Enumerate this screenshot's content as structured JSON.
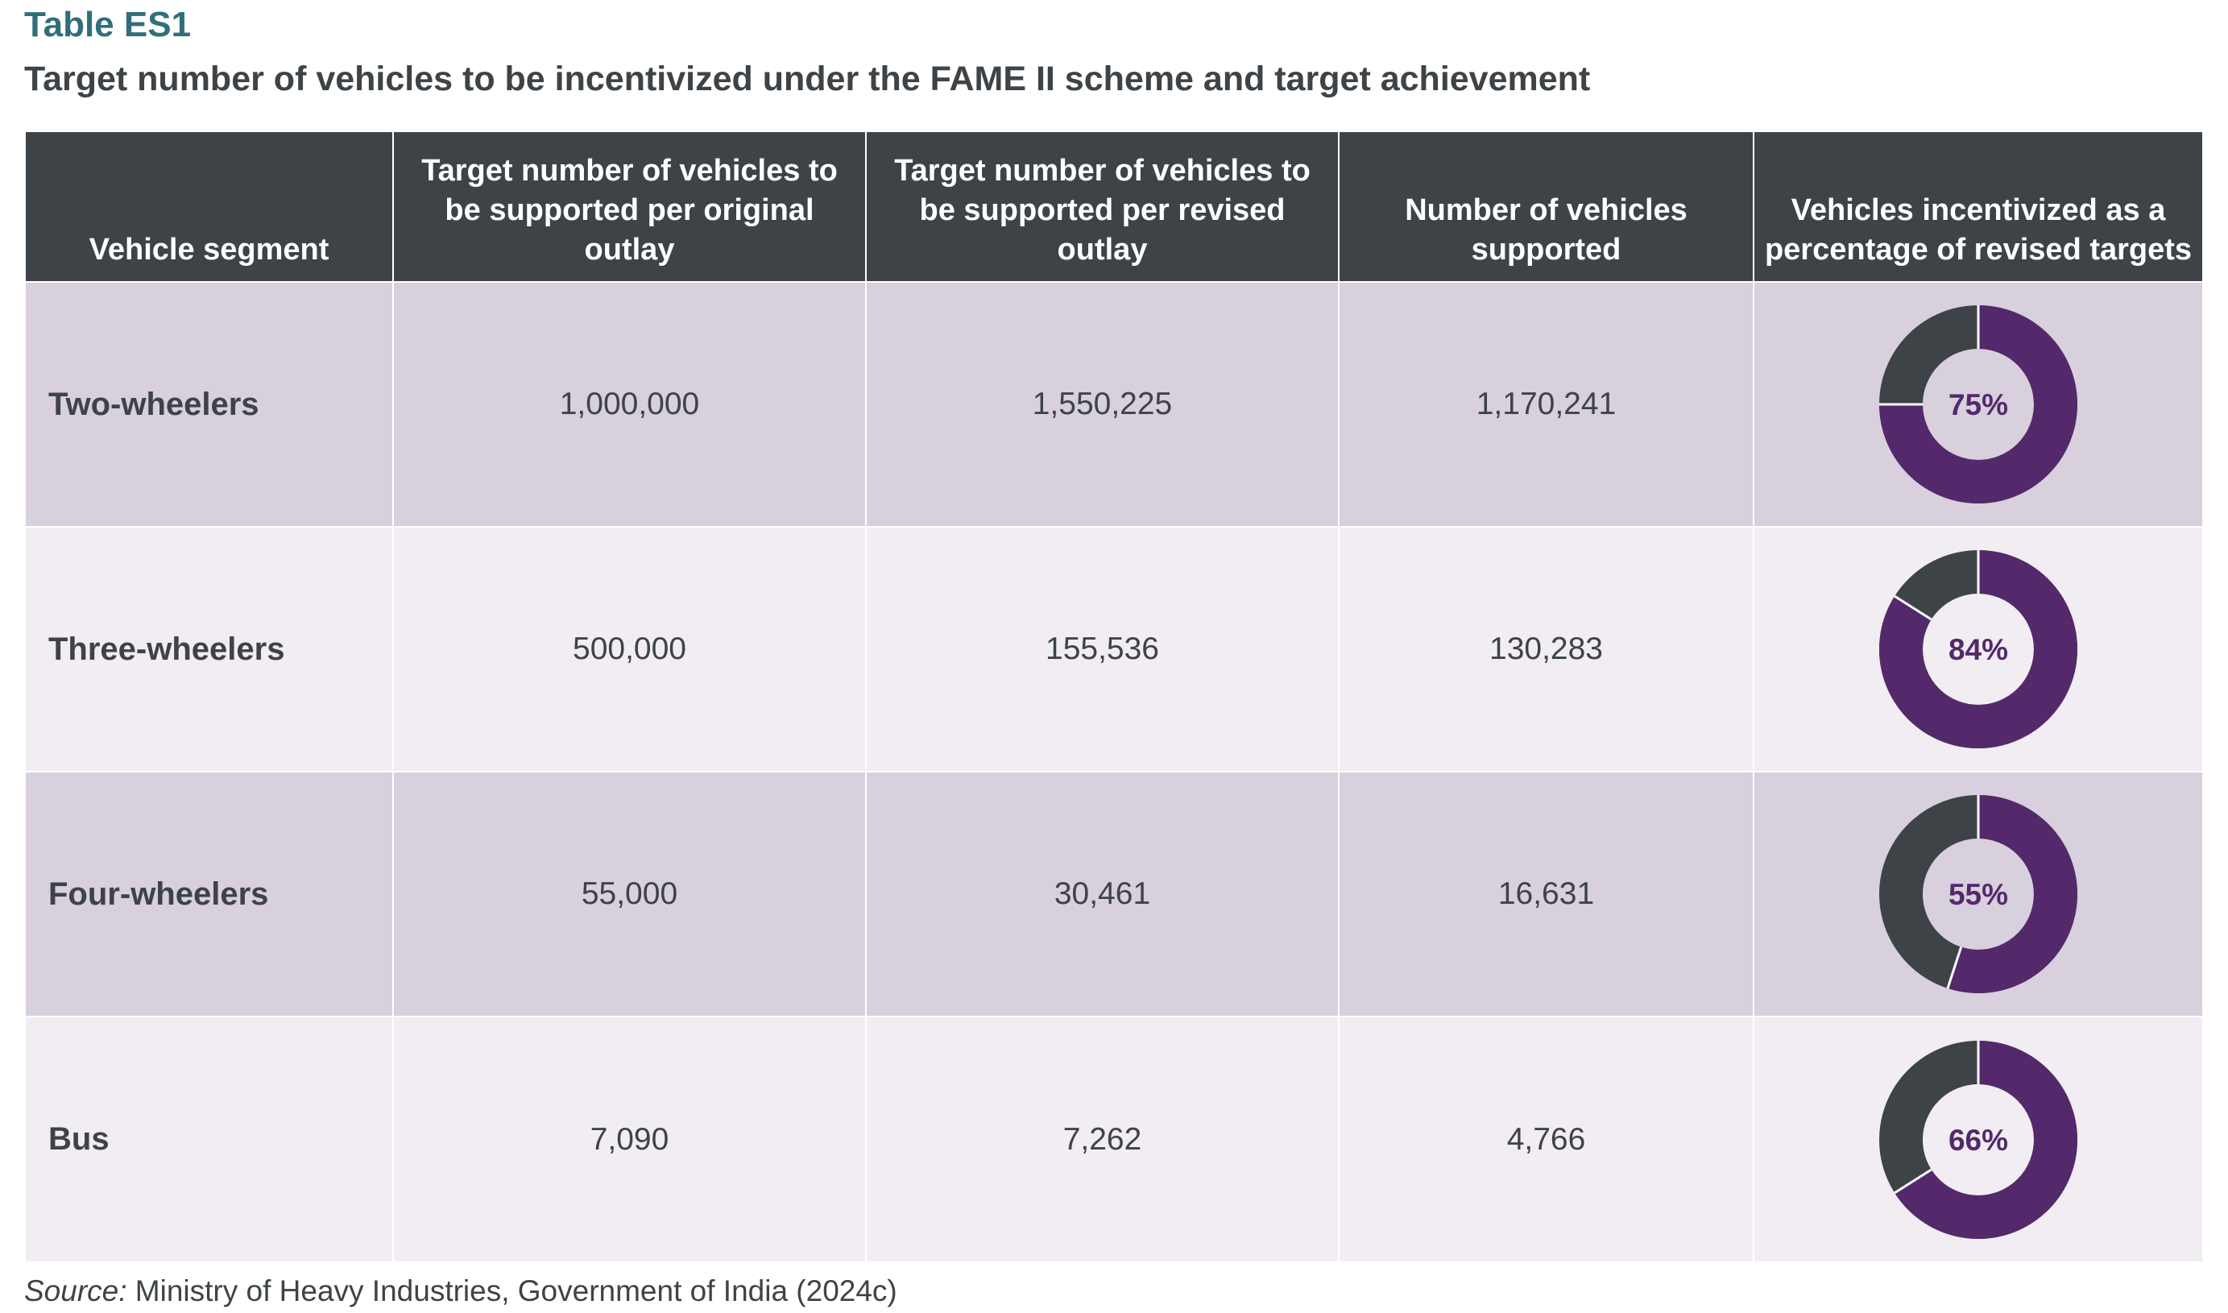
{
  "header": {
    "label": "Table ES1",
    "title": "Target number of vehicles to be incentivized under the FAME II scheme and target achievement"
  },
  "columns": [
    "Vehicle segment",
    "Target number of vehicles to be supported per original outlay",
    "Target number of vehicles to be supported per revised outlay",
    "Number of vehicles supported",
    "Vehicles incentivized as a percentage of revised targets"
  ],
  "rows": [
    {
      "segment": "Two-wheelers",
      "original": "1,000,000",
      "revised": "1,550,225",
      "supported": "1,170,241",
      "pct_label": "75%",
      "pct": 0.75
    },
    {
      "segment": "Three-wheelers",
      "original": "500,000",
      "revised": "155,536",
      "supported": "130,283",
      "pct_label": "84%",
      "pct": 0.84
    },
    {
      "segment": "Four-wheelers",
      "original": "55,000",
      "revised": "30,461",
      "supported": "16,631",
      "pct_label": "55%",
      "pct": 0.55
    },
    {
      "segment": "Bus",
      "original": "7,090",
      "revised": "7,262",
      "supported": "4,766",
      "pct_label": "66%",
      "pct": 0.66
    }
  ],
  "colors": {
    "achieved": "#54296b",
    "remaining": "#3d4347",
    "header_bg": "#3d4347",
    "label_color": "#2f6f79",
    "row_odd": "#d8d0dc",
    "row_even": "#f1edf2"
  },
  "source": {
    "label": "Source:",
    "text": " Ministry of Heavy Industries, Government of India (2024c)"
  }
}
